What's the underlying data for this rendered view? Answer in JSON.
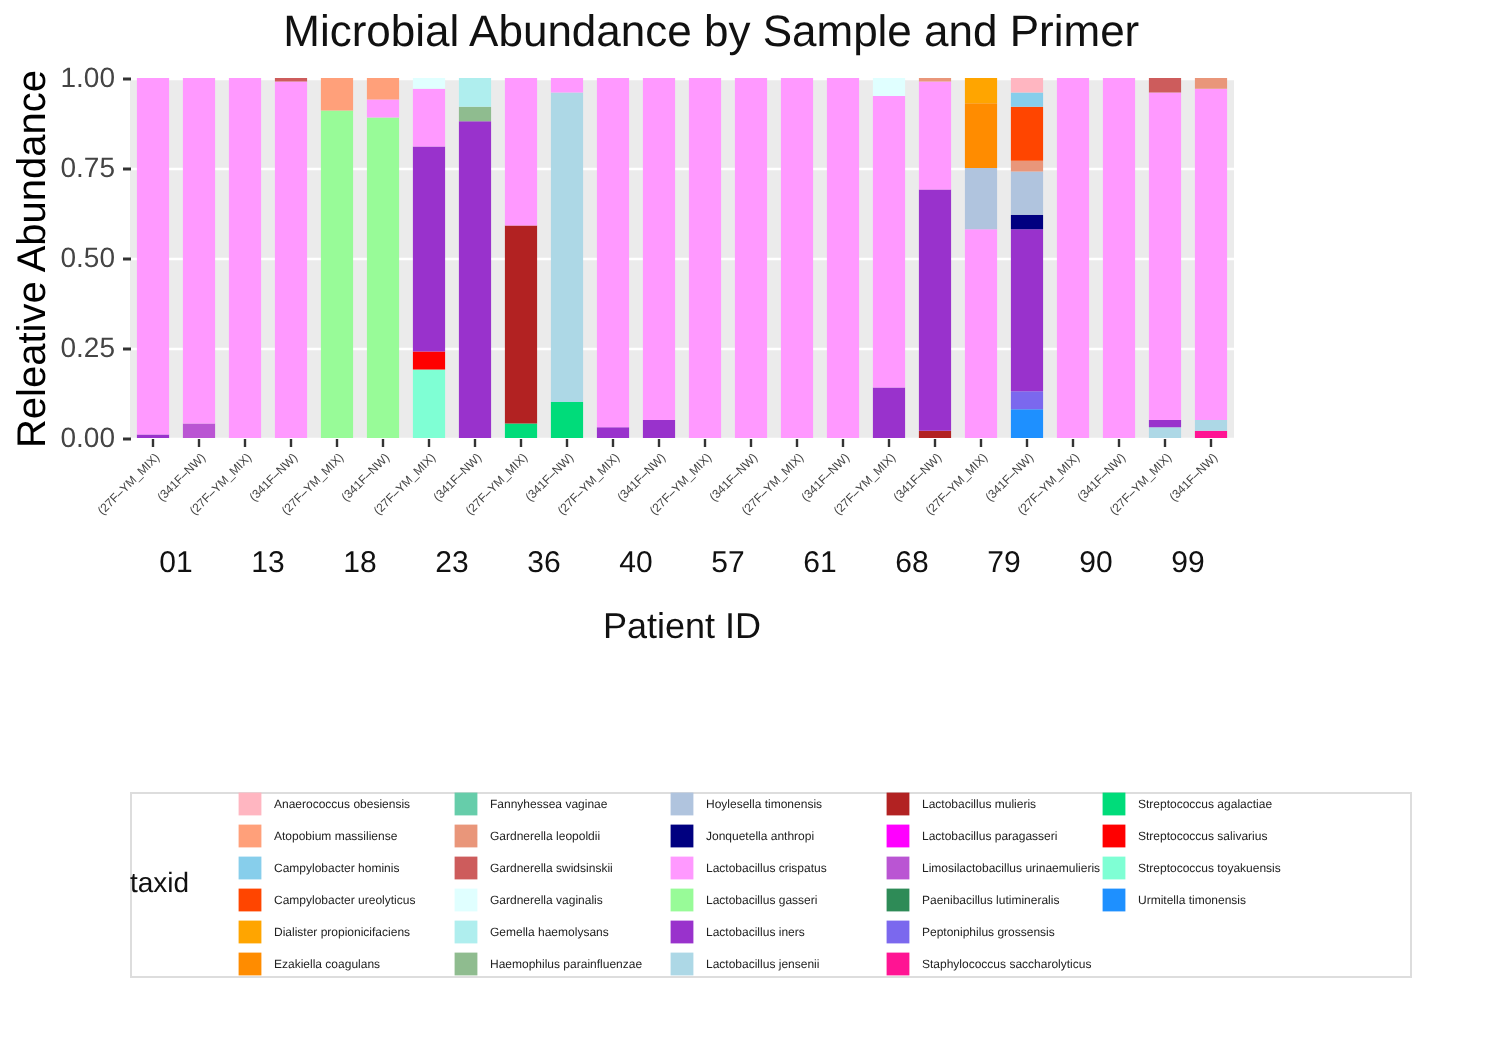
{
  "chart_data": {
    "type": "bar",
    "stacked": true,
    "title": "Microbial Abundance by Sample and Primer",
    "ylabel": "Releative Abundance",
    "xlabel": "Patient ID",
    "legend_title": "taxid",
    "legend": "bottom",
    "grid": "y",
    "annotations": [
      "01",
      "13",
      "18",
      "23",
      "36",
      "40",
      "57",
      "61",
      "68",
      "79",
      "90",
      "99"
    ],
    "categories": [
      "(27F–YM_MIX)",
      "(341F–NW)",
      "(27F–YM_MIX)",
      "(341F–NW)",
      "(27F–YM_MIX)",
      "(341F–NW)",
      "(27F–YM_MIX)",
      "(341F–NW)",
      "(27F–YM_MIX)",
      "(341F–NW)",
      "(27F–YM_MIX)",
      "(341F–NW)",
      "(27F–YM_MIX)",
      "(341F–NW)",
      "(27F–YM_MIX)",
      "(341F–NW)",
      "(27F–YM_MIX)",
      "(341F–NW)",
      "(27F–YM_MIX)",
      "(341F–NW)",
      "(27F–YM_MIX)",
      "(341F–NW)",
      "(27F–YM_MIX)",
      "(341F–NW)"
    ],
    "ylim": [
      0,
      1
    ],
    "yticks": [
      {
        "value": 0,
        "label": "0.00"
      },
      {
        "value": 0.25,
        "label": "0.25"
      },
      {
        "value": 0.5,
        "label": "0.50"
      },
      {
        "value": 0.75,
        "label": "0.75"
      },
      {
        "value": 1,
        "label": "1.00"
      }
    ],
    "series": [
      {
        "name": "Urmitella timonensis",
        "color": "#1e90ff",
        "values": [
          null,
          null,
          null,
          null,
          null,
          null,
          null,
          null,
          null,
          null,
          null,
          null,
          null,
          null,
          null,
          null,
          null,
          null,
          null,
          0.08,
          null,
          null,
          null,
          null
        ]
      },
      {
        "name": "Streptococcus toyakuensis",
        "color": "#7fffd4",
        "values": [
          null,
          null,
          null,
          null,
          null,
          null,
          0.19,
          null,
          null,
          null,
          null,
          null,
          null,
          null,
          null,
          null,
          null,
          null,
          null,
          null,
          null,
          null,
          null,
          null
        ]
      },
      {
        "name": "Streptococcus salivarius",
        "color": "#ff0000",
        "values": [
          null,
          null,
          null,
          null,
          null,
          null,
          0.05,
          null,
          null,
          null,
          null,
          null,
          null,
          null,
          null,
          null,
          null,
          null,
          null,
          null,
          null,
          null,
          null,
          null
        ]
      },
      {
        "name": "Streptococcus agalactiae",
        "color": "#00dc7a",
        "values": [
          null,
          null,
          null,
          null,
          null,
          null,
          null,
          null,
          0.04,
          0.1,
          null,
          null,
          null,
          null,
          null,
          null,
          null,
          null,
          null,
          null,
          null,
          null,
          null,
          null
        ]
      },
      {
        "name": "Staphylococcus saccharolyticus",
        "color": "#ff1493",
        "values": [
          null,
          null,
          null,
          null,
          null,
          null,
          null,
          null,
          null,
          null,
          null,
          null,
          null,
          null,
          null,
          null,
          null,
          null,
          null,
          null,
          null,
          null,
          null,
          0.02
        ]
      },
      {
        "name": "Peptoniphilus grossensis",
        "color": "#7b68ee",
        "values": [
          null,
          null,
          null,
          null,
          null,
          null,
          null,
          null,
          null,
          null,
          null,
          null,
          null,
          null,
          null,
          null,
          null,
          null,
          null,
          0.05,
          null,
          null,
          null,
          null
        ]
      },
      {
        "name": "Paenibacillus lutimineralis",
        "color": "#2e8b57",
        "values": [
          null,
          null,
          null,
          null,
          null,
          null,
          null,
          null,
          null,
          null,
          null,
          null,
          null,
          null,
          null,
          null,
          null,
          null,
          null,
          null,
          null,
          null,
          null,
          null
        ]
      },
      {
        "name": "Limosilactobacillus urinaemulieris",
        "color": "#ba55d3",
        "values": [
          null,
          0.04,
          null,
          null,
          null,
          null,
          null,
          null,
          null,
          null,
          null,
          null,
          null,
          null,
          null,
          null,
          null,
          null,
          null,
          null,
          null,
          null,
          null,
          null
        ]
      },
      {
        "name": "Lactobacillus paragasseri",
        "color": "#ff00ff",
        "values": [
          null,
          null,
          null,
          null,
          null,
          null,
          null,
          null,
          null,
          null,
          null,
          null,
          null,
          null,
          null,
          null,
          null,
          null,
          null,
          null,
          null,
          null,
          null,
          null
        ]
      },
      {
        "name": "Lactobacillus mulieris",
        "color": "#b22222",
        "values": [
          null,
          null,
          null,
          null,
          null,
          null,
          null,
          null,
          0.55,
          null,
          null,
          null,
          null,
          null,
          null,
          null,
          null,
          0.02,
          null,
          null,
          null,
          null,
          null,
          null
        ]
      },
      {
        "name": "Lactobacillus jensenii",
        "color": "#add8e6",
        "values": [
          null,
          null,
          null,
          null,
          null,
          null,
          null,
          null,
          null,
          0.86,
          null,
          null,
          null,
          null,
          null,
          null,
          null,
          null,
          null,
          null,
          null,
          null,
          0.03,
          0.03
        ]
      },
      {
        "name": "Lactobacillus iners",
        "color": "#9932cc",
        "values": [
          0.01,
          null,
          null,
          null,
          null,
          null,
          0.57,
          0.88,
          null,
          null,
          0.03,
          0.05,
          null,
          null,
          null,
          null,
          0.14,
          0.67,
          null,
          0.45,
          null,
          null,
          0.02,
          null
        ]
      },
      {
        "name": "Lactobacillus gasseri",
        "color": "#98fb98",
        "values": [
          null,
          null,
          null,
          null,
          0.91,
          0.89,
          null,
          null,
          null,
          null,
          null,
          null,
          null,
          null,
          null,
          null,
          null,
          null,
          null,
          null,
          null,
          null,
          null,
          null
        ]
      },
      {
        "name": "Lactobacillus crispatus",
        "color": "#ff99ff",
        "values": [
          0.99,
          0.96,
          1.0,
          0.99,
          null,
          0.05,
          0.16,
          null,
          0.41,
          0.04,
          0.97,
          0.95,
          1.0,
          1.0,
          1.0,
          1.0,
          0.81,
          0.3,
          0.58,
          null,
          1.0,
          1.0,
          0.91,
          0.92
        ]
      },
      {
        "name": "Jonquetella anthropi",
        "color": "#000080",
        "values": [
          null,
          null,
          null,
          null,
          null,
          null,
          null,
          null,
          null,
          null,
          null,
          null,
          null,
          null,
          null,
          null,
          null,
          null,
          null,
          0.04,
          null,
          null,
          null,
          null
        ]
      },
      {
        "name": "Hoylesella timonensis",
        "color": "#b0c4de",
        "values": [
          null,
          null,
          null,
          null,
          null,
          null,
          null,
          null,
          null,
          null,
          null,
          null,
          null,
          null,
          null,
          null,
          null,
          null,
          0.17,
          0.12,
          null,
          null,
          null,
          null
        ]
      },
      {
        "name": "Haemophilus parainfluenzae",
        "color": "#8fbc8f",
        "values": [
          null,
          null,
          null,
          null,
          null,
          null,
          null,
          0.04,
          null,
          null,
          null,
          null,
          null,
          null,
          null,
          null,
          null,
          null,
          null,
          null,
          null,
          null,
          null,
          null
        ]
      },
      {
        "name": "Gemella haemolysans",
        "color": "#afeeee",
        "values": [
          null,
          null,
          null,
          null,
          null,
          null,
          null,
          0.08,
          null,
          null,
          null,
          null,
          null,
          null,
          null,
          null,
          null,
          null,
          null,
          null,
          null,
          null,
          null,
          null
        ]
      },
      {
        "name": "Gardnerella vaginalis",
        "color": "#e0ffff",
        "values": [
          null,
          null,
          null,
          null,
          null,
          null,
          0.03,
          null,
          null,
          null,
          null,
          null,
          null,
          null,
          null,
          null,
          0.05,
          null,
          null,
          null,
          null,
          null,
          null,
          null
        ]
      },
      {
        "name": "Gardnerella swidsinskii",
        "color": "#cd5c5c",
        "values": [
          null,
          null,
          null,
          0.01,
          null,
          null,
          null,
          null,
          null,
          null,
          null,
          null,
          null,
          null,
          null,
          null,
          null,
          null,
          null,
          null,
          null,
          null,
          0.04,
          null
        ]
      },
      {
        "name": "Gardnerella leopoldii",
        "color": "#e9967a",
        "values": [
          null,
          null,
          null,
          null,
          null,
          null,
          null,
          null,
          null,
          null,
          null,
          null,
          null,
          null,
          null,
          null,
          null,
          0.01,
          null,
          0.03,
          null,
          null,
          null,
          0.03
        ]
      },
      {
        "name": "Fannyhessea vaginae",
        "color": "#66cdaa",
        "values": [
          null,
          null,
          null,
          null,
          null,
          null,
          null,
          null,
          null,
          null,
          null,
          null,
          null,
          null,
          null,
          null,
          null,
          null,
          null,
          null,
          null,
          null,
          null,
          null
        ]
      },
      {
        "name": "Ezakiella coagulans",
        "color": "#ff8c00",
        "values": [
          null,
          null,
          null,
          null,
          null,
          null,
          null,
          null,
          null,
          null,
          null,
          null,
          null,
          null,
          null,
          null,
          null,
          null,
          0.18,
          null,
          null,
          null,
          null,
          null
        ]
      },
      {
        "name": "Dialister propionicifaciens",
        "color": "#ffa500",
        "values": [
          null,
          null,
          null,
          null,
          null,
          null,
          null,
          null,
          null,
          null,
          null,
          null,
          null,
          null,
          null,
          null,
          null,
          null,
          0.07,
          null,
          null,
          null,
          null,
          null
        ]
      },
      {
        "name": "Campylobacter ureolyticus",
        "color": "#ff4500",
        "values": [
          null,
          null,
          null,
          null,
          null,
          null,
          null,
          null,
          null,
          null,
          null,
          null,
          null,
          null,
          null,
          null,
          null,
          null,
          null,
          0.15,
          null,
          null,
          null,
          null
        ]
      },
      {
        "name": "Campylobacter hominis",
        "color": "#87ceeb",
        "values": [
          null,
          null,
          null,
          null,
          null,
          null,
          null,
          null,
          null,
          null,
          null,
          null,
          null,
          null,
          null,
          null,
          null,
          null,
          null,
          0.04,
          null,
          null,
          null,
          null
        ]
      },
      {
        "name": "Atopobium massiliense",
        "color": "#ffa07a",
        "values": [
          null,
          null,
          null,
          null,
          0.09,
          0.06,
          null,
          null,
          null,
          null,
          null,
          null,
          null,
          null,
          null,
          null,
          null,
          null,
          null,
          null,
          null,
          null,
          null,
          null
        ]
      },
      {
        "name": "Anaerococcus obesiensis",
        "color": "#ffb6c1",
        "values": [
          null,
          null,
          null,
          null,
          null,
          null,
          null,
          null,
          null,
          null,
          null,
          null,
          null,
          null,
          null,
          null,
          null,
          null,
          null,
          0.04,
          null,
          null,
          null,
          null
        ]
      }
    ]
  }
}
